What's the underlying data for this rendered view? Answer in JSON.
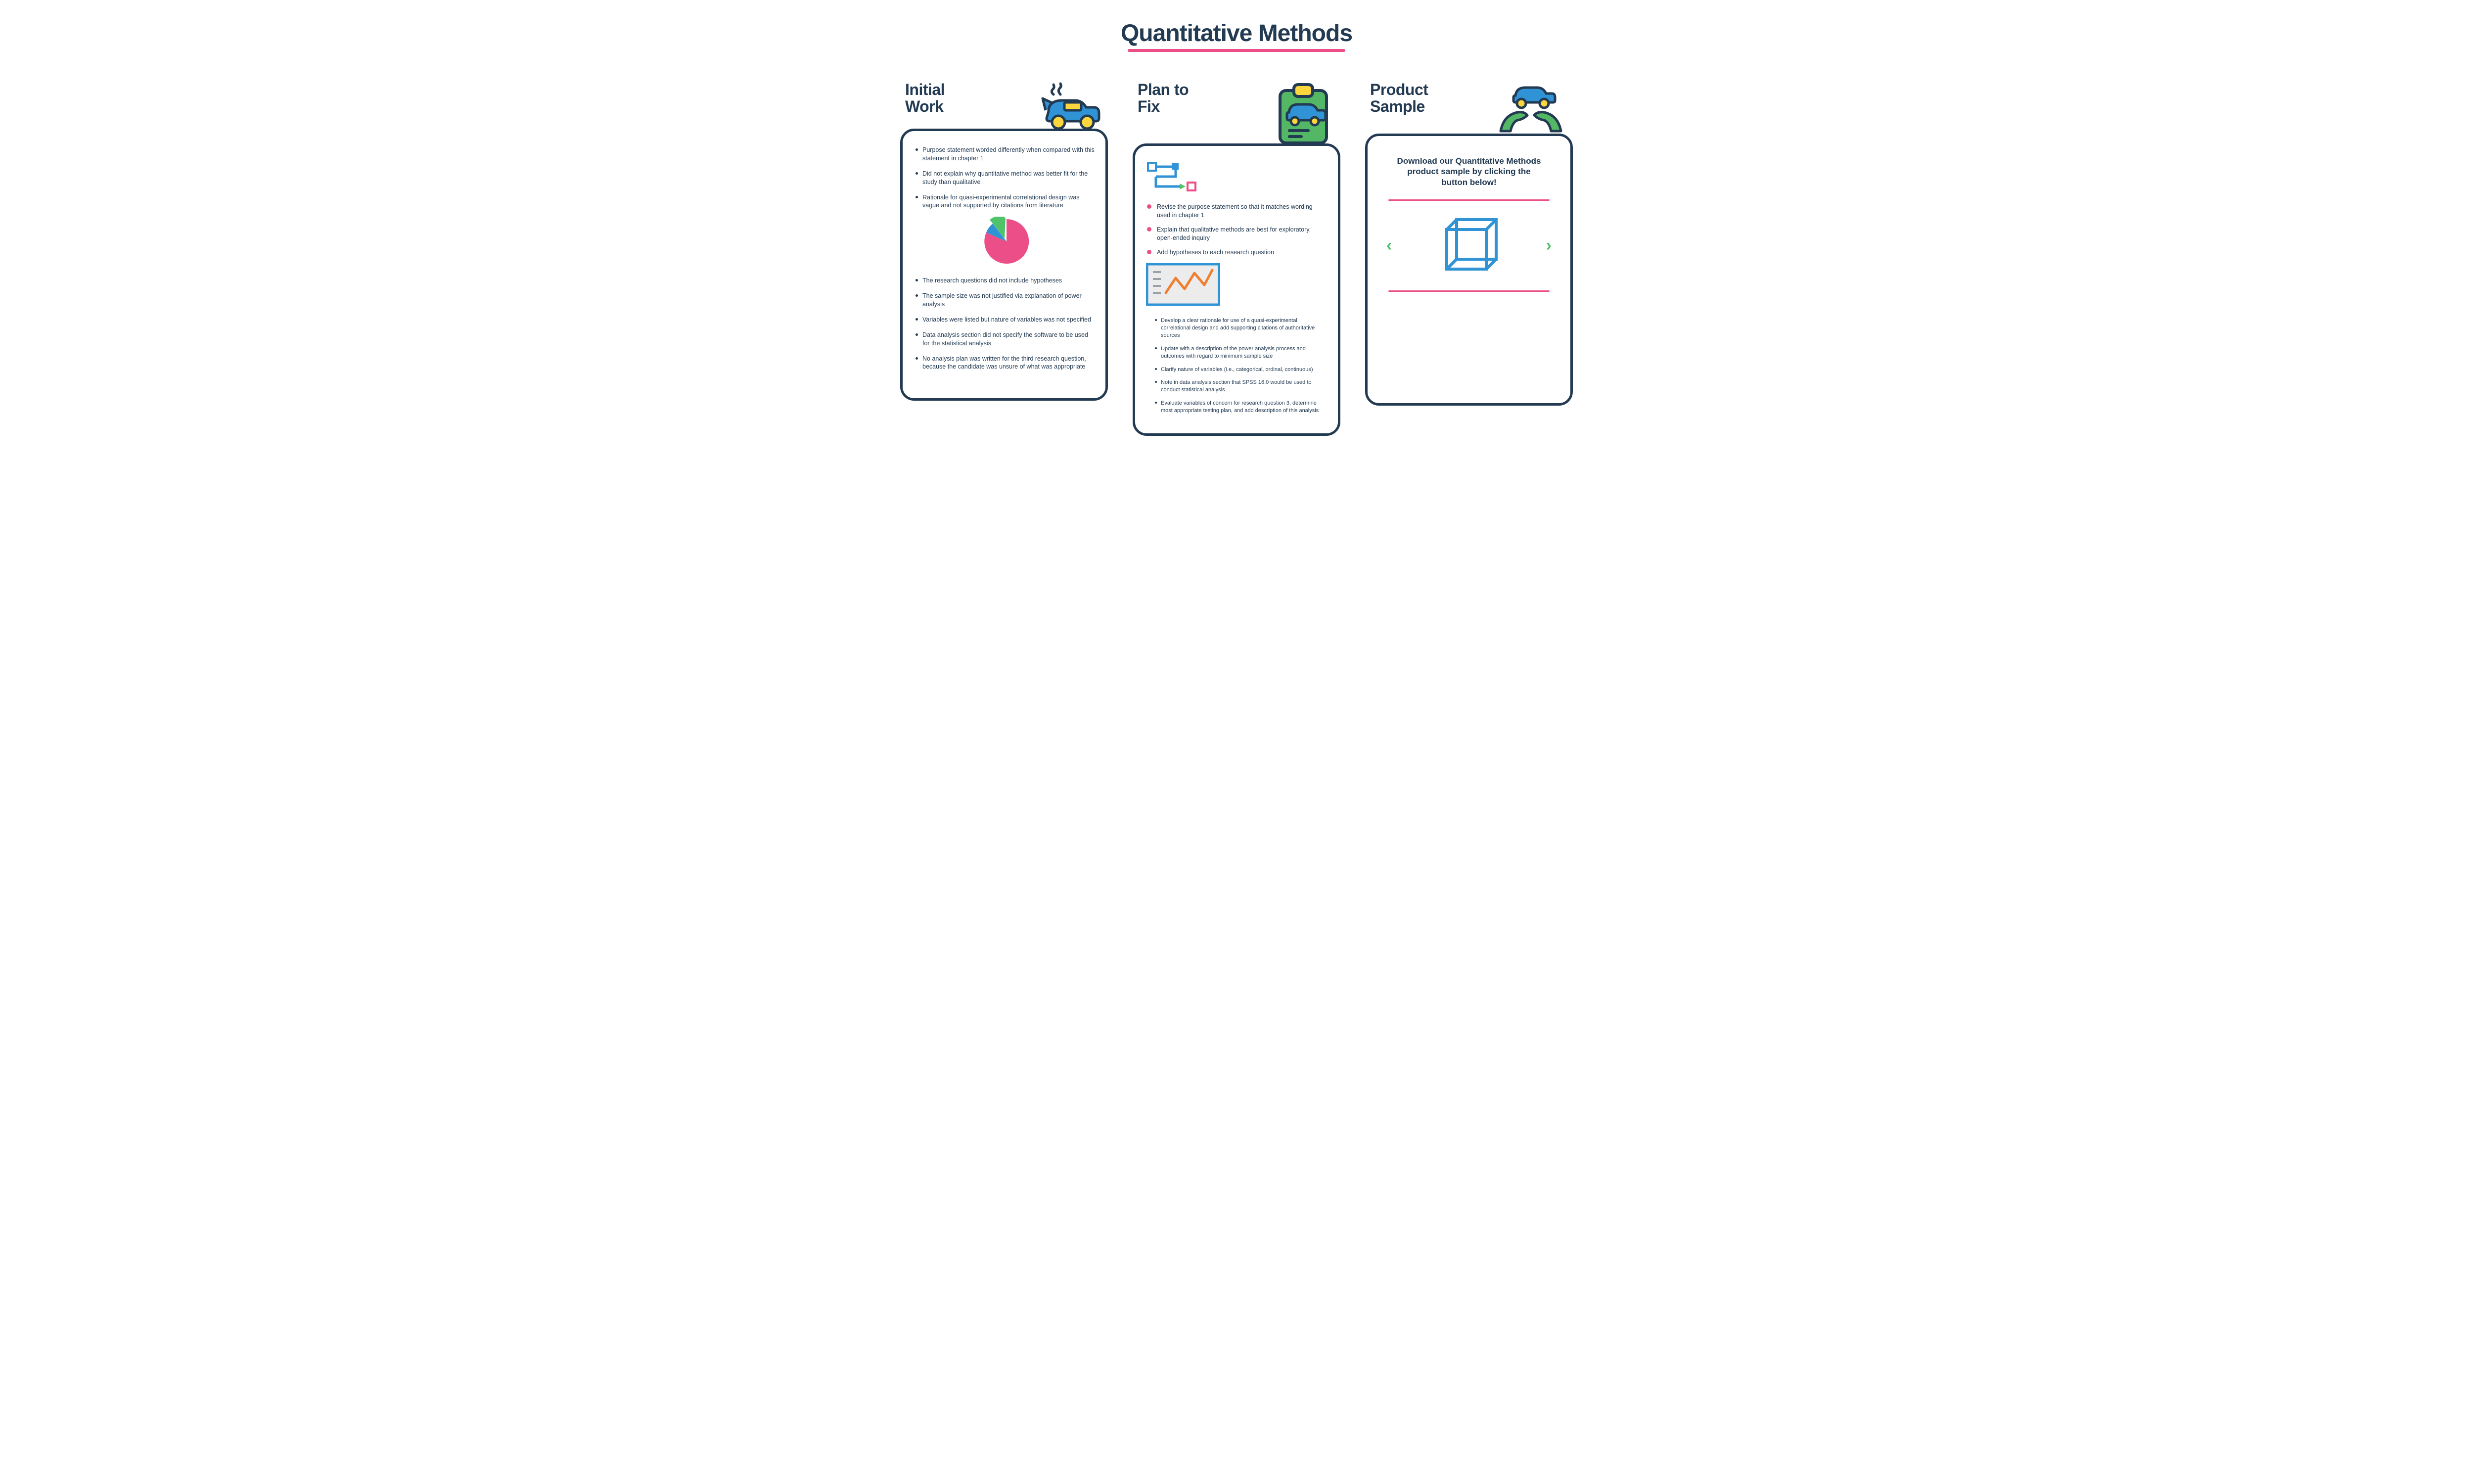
{
  "colors": {
    "navy": "#223a52",
    "pink": "#ec4f87",
    "green": "#4fc26a",
    "blue": "#2f93d6",
    "yellow": "#fbd63c",
    "orange": "#ef7f2e",
    "panel_green": "#54b766",
    "lightgrey": "#ececec",
    "grey": "#9aa1a8"
  },
  "title": "Quantitative Methods",
  "columns": {
    "initial": {
      "title": "Initial\nWork",
      "icon": "car-broken",
      "items_top": [
        "Purpose statement worded differently when compared with this statement in chapter 1",
        " Did not explain why quantitative method was better fit for the study than qualitative",
        "Rationale for quasi-experimental correlational design was vague and not supported by citations from literature"
      ],
      "pie": {
        "slices": [
          {
            "color": "#4fc26a",
            "pct": 25
          },
          {
            "color": "#2f93d6",
            "pct": 10
          },
          {
            "color": "#ec4f87",
            "pct": 65
          }
        ],
        "size": 100,
        "explode_green": true
      },
      "items_bottom": [
        "The research questions did not include hypotheses",
        "The sample size was not justified via explanation of power analysis",
        "Variables were listed but nature of variables was not specified",
        "Data analysis section did not specify the software to be used for the statistical analysis",
        "No analysis plan was written for the third research question, because the candidate was unsure of what was appropriate"
      ]
    },
    "plan": {
      "title": "Plan to\nFix",
      "icon": "clipboard-car",
      "flow_icon": "flowchart",
      "items_red": [
        "Revise the purpose statement so that it matches wording used in chapter 1",
        "Explain that qualitative methods are best for exploratory, open-ended inquiry",
        "Add hypotheses to each research question"
      ],
      "chart_icon": "line-chart",
      "items_small": [
        "Develop a clear rationale for use of a quasi-experimental correlational design and add supporting citations of authoritative sources",
        "Update with a description of the power analysis process and outcomes with regard to minimum sample size",
        "Clarify nature of variables (i.e., categorical, ordinal, continuous)",
        "Note in data analysis section that SPSS 16.0 would be used to conduct statistical analysis",
        "Evaluate variables of concern for research question 3, determine most appropriate testing plan, and add description of this analysis"
      ]
    },
    "product": {
      "title": "Product\nSample",
      "icon": "hands-car",
      "download_text": "Download our Quantitative Methods product sample by clicking the button below!",
      "cube_icon": "cube",
      "chev_left": "‹",
      "chev_right": "›"
    }
  }
}
